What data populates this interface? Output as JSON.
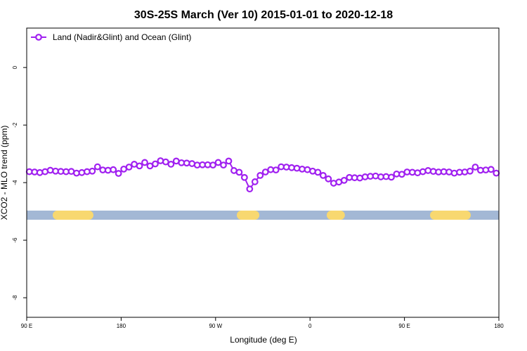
{
  "chart_data": {
    "type": "line",
    "title": "30S-25S March (Ver 10)   2015-01-01 to 2020-12-18",
    "x_label": "Longitude (deg E)",
    "y_label": "XCO2 - MLO trend (ppm)",
    "xlim": [
      90,
      540
    ],
    "xticks": [
      {
        "value": 90,
        "label": "90 E"
      },
      {
        "value": 180,
        "label": "180"
      },
      {
        "value": 270,
        "label": "90 W"
      },
      {
        "value": 360,
        "label": "0"
      },
      {
        "value": 450,
        "label": "90 E"
      },
      {
        "value": 540,
        "label": "180"
      }
    ],
    "ylim": [
      -8.68,
      1.37
    ],
    "yticks": [
      0,
      -2,
      -4,
      -6,
      -8
    ],
    "legend": "top-left",
    "land_segments": [
      [
        114.8,
        153.6
      ],
      [
        290.2,
        311.7
      ],
      [
        375.9,
        393.2
      ],
      [
        474.4,
        513.2
      ]
    ],
    "x": [
      92.5,
      97.5,
      102.5,
      107.5,
      112.5,
      117.5,
      122.5,
      127.5,
      132.5,
      137.5,
      142.5,
      147.5,
      152.5,
      157.5,
      162.5,
      167.5,
      172.5,
      177.5,
      182.5,
      187.5,
      192.5,
      197.5,
      202.5,
      207.5,
      212.5,
      217.5,
      222.5,
      227.5,
      232.5,
      237.5,
      242.5,
      247.5,
      252.5,
      257.5,
      262.5,
      267.5,
      272.5,
      277.5,
      282.5,
      287.5,
      292.5,
      297.5,
      302.5,
      307.5,
      312.5,
      317.5,
      322.5,
      327.5,
      332.5,
      337.5,
      342.5,
      347.5,
      352.5,
      357.5,
      362.5,
      367.5,
      372.5,
      377.5,
      382.5,
      387.5,
      392.5,
      397.5,
      402.5,
      407.5,
      412.5,
      417.5,
      422.5,
      427.5,
      432.5,
      437.5,
      442.5,
      447.5,
      452.5,
      457.5,
      462.5,
      467.5,
      472.5,
      477.5,
      482.5,
      487.5,
      492.5,
      497.5,
      502.5,
      507.5,
      512.5,
      517.5,
      522.5,
      527.5,
      532.5,
      537.5
    ],
    "series": [
      {
        "name": "Land (Nadir&Glint) and Ocean (Glint)",
        "color": "#a020f0",
        "values": [
          -3.62,
          -3.63,
          -3.65,
          -3.62,
          -3.57,
          -3.6,
          -3.61,
          -3.62,
          -3.61,
          -3.67,
          -3.65,
          -3.62,
          -3.6,
          -3.45,
          -3.56,
          -3.57,
          -3.55,
          -3.68,
          -3.53,
          -3.46,
          -3.36,
          -3.42,
          -3.3,
          -3.42,
          -3.35,
          -3.24,
          -3.28,
          -3.36,
          -3.25,
          -3.31,
          -3.32,
          -3.34,
          -3.39,
          -3.38,
          -3.38,
          -3.39,
          -3.3,
          -3.39,
          -3.25,
          -3.58,
          -3.64,
          -3.82,
          -4.22,
          -3.97,
          -3.75,
          -3.63,
          -3.55,
          -3.56,
          -3.45,
          -3.46,
          -3.48,
          -3.5,
          -3.53,
          -3.55,
          -3.6,
          -3.64,
          -3.75,
          -3.87,
          -4.02,
          -3.98,
          -3.92,
          -3.82,
          -3.83,
          -3.84,
          -3.8,
          -3.78,
          -3.77,
          -3.8,
          -3.79,
          -3.81,
          -3.7,
          -3.71,
          -3.63,
          -3.64,
          -3.66,
          -3.62,
          -3.58,
          -3.61,
          -3.63,
          -3.62,
          -3.63,
          -3.67,
          -3.64,
          -3.63,
          -3.6,
          -3.46,
          -3.57,
          -3.56,
          -3.54,
          -3.67
        ]
      }
    ]
  }
}
